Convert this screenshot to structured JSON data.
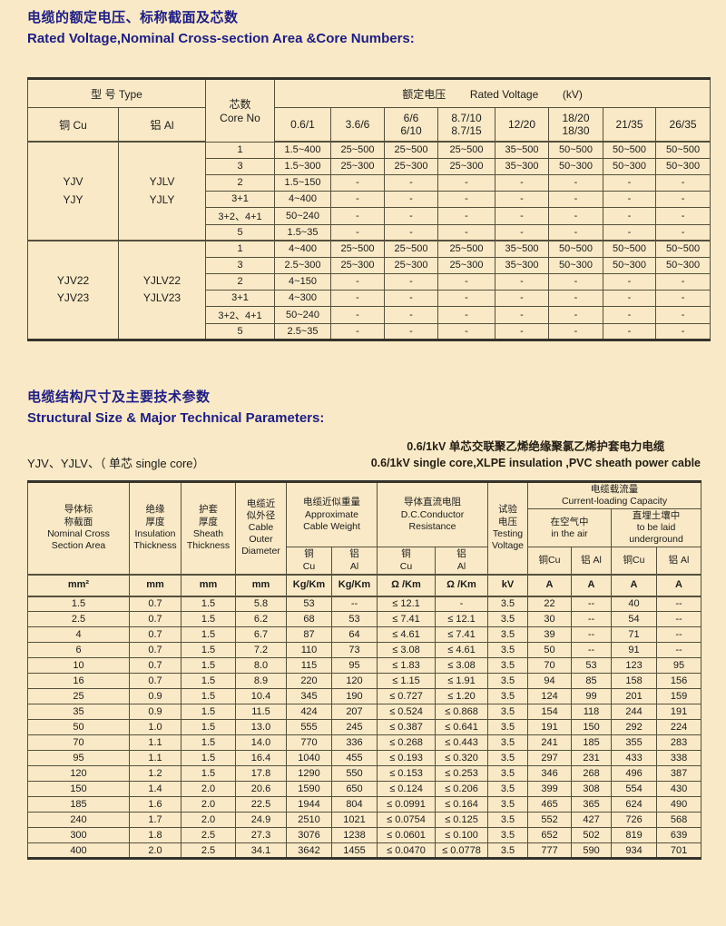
{
  "page": {
    "background": "#f9e9c6",
    "accent": "#1d1d85"
  },
  "section1": {
    "title_zh": "电缆的额定电压、标称截面及芯数",
    "title_en": "Rated  Voltage,Nominal Cross-section Area &Core Numbers:",
    "table": {
      "header": {
        "type_label": "型 号 Type",
        "cu_label": "铜 Cu",
        "al_label": "铝  Al",
        "core_label": "芯数\nCore No",
        "voltage_label": "额定电压        Rated Voltage        (kV)",
        "voltages": [
          "0.6/1",
          "3.6/6",
          "6/6\n6/10",
          "8.7/10\n8.7/15",
          "12/20",
          "18/20\n18/30",
          "21/35",
          "26/35"
        ]
      },
      "groups": [
        {
          "cu": "YJV\nYJY",
          "al": "YJLV\nYJLY",
          "rows": [
            {
              "core": "1",
              "vals": [
                "1.5~400",
                "25~500",
                "25~500",
                "25~500",
                "35~500",
                "50~500",
                "50~500",
                "50~500"
              ]
            },
            {
              "core": "3",
              "vals": [
                "1.5~300",
                "25~300",
                "25~300",
                "25~300",
                "35~300",
                "50~300",
                "50~300",
                "50~300"
              ]
            },
            {
              "core": "2",
              "vals": [
                "1.5~150",
                "-",
                "-",
                "-",
                "-",
                "-",
                "-",
                "-"
              ]
            },
            {
              "core": "3+1",
              "vals": [
                "4~400",
                "-",
                "-",
                "-",
                "-",
                "-",
                "-",
                "-"
              ]
            },
            {
              "core": "3+2、4+1",
              "vals": [
                "50~240",
                "-",
                "-",
                "-",
                "-",
                "-",
                "-",
                "-"
              ]
            },
            {
              "core": "5",
              "vals": [
                "1.5~35",
                "-",
                "-",
                "-",
                "-",
                "-",
                "-",
                "-"
              ]
            }
          ]
        },
        {
          "cu": "YJV22\nYJV23",
          "al": "YJLV22\nYJLV23",
          "rows": [
            {
              "core": "1",
              "vals": [
                "4~400",
                "25~500",
                "25~500",
                "25~500",
                "35~500",
                "50~500",
                "50~500",
                "50~500"
              ]
            },
            {
              "core": "3",
              "vals": [
                "2.5~300",
                "25~300",
                "25~300",
                "25~300",
                "35~300",
                "50~300",
                "50~300",
                "50~300"
              ]
            },
            {
              "core": "2",
              "vals": [
                "4~150",
                "-",
                "-",
                "-",
                "-",
                "-",
                "-",
                "-"
              ]
            },
            {
              "core": "3+1",
              "vals": [
                "4~300",
                "-",
                "-",
                "-",
                "-",
                "-",
                "-",
                "-"
              ]
            },
            {
              "core": "3+2、4+1",
              "vals": [
                "50~240",
                "-",
                "-",
                "-",
                "-",
                "-",
                "-",
                "-"
              ]
            },
            {
              "core": "5",
              "vals": [
                "2.5~35",
                "-",
                "-",
                "-",
                "-",
                "-",
                "-",
                "-"
              ]
            }
          ]
        }
      ]
    }
  },
  "section2": {
    "title_zh": "电缆结构尺寸及主要技术参数",
    "title_en": "Structural Size & Major Technical Parameters:",
    "left_note": "YJV、YJLV、（ 单芯  single core）",
    "right_note_zh": "0.6/1kV 单芯交联聚乙烯绝缘聚氯乙烯护套电力电缆",
    "right_note_en": "0.6/1kV single core,XLPE insulation ,PVC sheath power cable",
    "table": {
      "header": {
        "nominal": "导体标\n称截面\nNominal Cross\nSection Area",
        "insulation": "绝缘\n厚度\nInsulation\nThickness",
        "sheath": "护套\n厚度\nSheath\nThickness",
        "diameter": "电缆近\n似外径\nCable\nOuter\nDiameter",
        "weight": "电缆近似重量\nApproximate\nCable Weight",
        "resistance": "导体直流电阻\nD.C.Conductor\nResistance",
        "testing": "试验\n电压\nTesting\nVoltage",
        "capacity": "电缆载流量\nCurrent-loading Capacity",
        "air": "在空气中\nin the air",
        "underground": "直埋土壤中\nto be laid\nunderground",
        "cu2": "铜\nCu",
        "al2": "铝\nAl",
        "cap_cu": "铜Cu",
        "cap_al": "铝 Al"
      },
      "units": [
        "mm²",
        "mm",
        "mm",
        "mm",
        "Kg/Km",
        "Kg/Km",
        "Ω /Km",
        "Ω /Km",
        "kV",
        "A",
        "A",
        "A",
        "A"
      ],
      "rows": [
        [
          "1.5",
          "0.7",
          "1.5",
          "5.8",
          "53",
          "--",
          "≤ 12.1",
          "-",
          "3.5",
          "22",
          "--",
          "40",
          "--"
        ],
        [
          "2.5",
          "0.7",
          "1.5",
          "6.2",
          "68",
          "53",
          "≤ 7.41",
          "≤ 12.1",
          "3.5",
          "30",
          "--",
          "54",
          "--"
        ],
        [
          "4",
          "0.7",
          "1.5",
          "6.7",
          "87",
          "64",
          "≤ 4.61",
          "≤ 7.41",
          "3.5",
          "39",
          "--",
          "71",
          "--"
        ],
        [
          "6",
          "0.7",
          "1.5",
          "7.2",
          "110",
          "73",
          "≤ 3.08",
          "≤ 4.61",
          "3.5",
          "50",
          "--",
          "91",
          "--"
        ],
        [
          "10",
          "0.7",
          "1.5",
          "8.0",
          "115",
          "95",
          "≤ 1.83",
          "≤ 3.08",
          "3.5",
          "70",
          "53",
          "123",
          "95"
        ],
        [
          "16",
          "0.7",
          "1.5",
          "8.9",
          "220",
          "120",
          "≤ 1.15",
          "≤ 1.91",
          "3.5",
          "94",
          "85",
          "158",
          "156"
        ],
        [
          "25",
          "0.9",
          "1.5",
          "10.4",
          "345",
          "190",
          "≤ 0.727",
          "≤ 1.20",
          "3.5",
          "124",
          "99",
          "201",
          "159"
        ],
        [
          "35",
          "0.9",
          "1.5",
          "11.5",
          "424",
          "207",
          "≤ 0.524",
          "≤ 0.868",
          "3.5",
          "154",
          "118",
          "244",
          "191"
        ],
        [
          "50",
          "1.0",
          "1.5",
          "13.0",
          "555",
          "245",
          "≤ 0.387",
          "≤ 0.641",
          "3.5",
          "191",
          "150",
          "292",
          "224"
        ],
        [
          "70",
          "1.1",
          "1.5",
          "14.0",
          "770",
          "336",
          "≤ 0.268",
          "≤ 0.443",
          "3.5",
          "241",
          "185",
          "355",
          "283"
        ],
        [
          "95",
          "1.1",
          "1.5",
          "16.4",
          "1040",
          "455",
          "≤ 0.193",
          "≤ 0.320",
          "3.5",
          "297",
          "231",
          "433",
          "338"
        ],
        [
          "120",
          "1.2",
          "1.5",
          "17.8",
          "1290",
          "550",
          "≤ 0.153",
          "≤ 0.253",
          "3.5",
          "346",
          "268",
          "496",
          "387"
        ],
        [
          "150",
          "1.4",
          "2.0",
          "20.6",
          "1590",
          "650",
          "≤ 0.124",
          "≤ 0.206",
          "3.5",
          "399",
          "308",
          "554",
          "430"
        ],
        [
          "185",
          "1.6",
          "2.0",
          "22.5",
          "1944",
          "804",
          "≤ 0.0991",
          "≤ 0.164",
          "3.5",
          "465",
          "365",
          "624",
          "490"
        ],
        [
          "240",
          "1.7",
          "2.0",
          "24.9",
          "2510",
          "1021",
          "≤ 0.0754",
          "≤ 0.125",
          "3.5",
          "552",
          "427",
          "726",
          "568"
        ],
        [
          "300",
          "1.8",
          "2.5",
          "27.3",
          "3076",
          "1238",
          "≤ 0.0601",
          "≤ 0.100",
          "3.5",
          "652",
          "502",
          "819",
          "639"
        ],
        [
          "400",
          "2.0",
          "2.5",
          "34.1",
          "3642",
          "1455",
          "≤ 0.0470",
          "≤ 0.0778",
          "3.5",
          "777",
          "590",
          "934",
          "701"
        ]
      ]
    }
  }
}
